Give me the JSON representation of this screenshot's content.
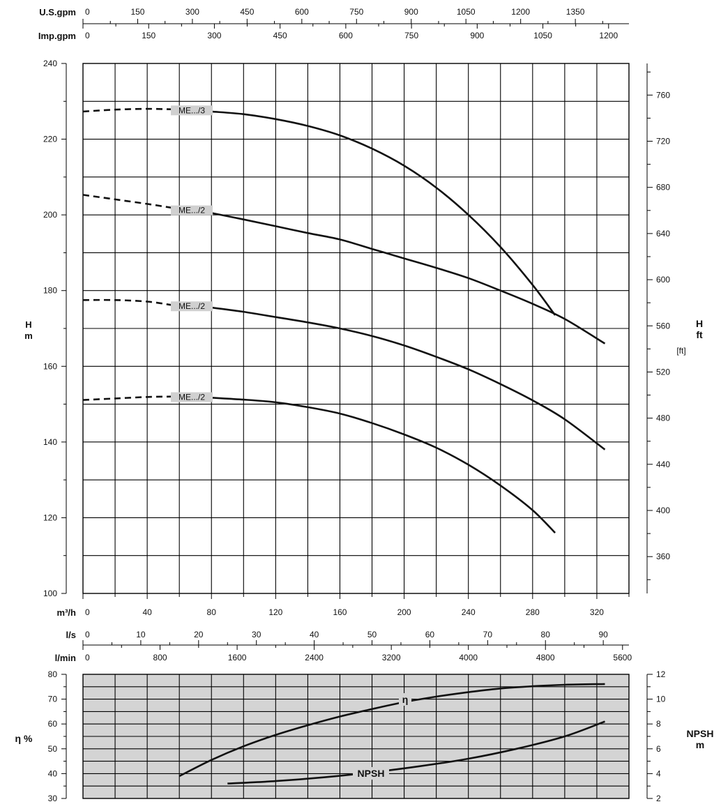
{
  "chart_data": [
    {
      "type": "line",
      "title": "",
      "xlabel": "m³/h",
      "ylabel": "H m",
      "ylabel_right": "H ft",
      "ylabel_right_unit": "[ft]",
      "xlim": [
        0,
        340
      ],
      "ylim": [
        100,
        240
      ],
      "x_ticks": [
        "0",
        "40",
        "80",
        "120",
        "160",
        "200",
        "240",
        "280",
        "320"
      ],
      "y_ticks": [
        "100",
        "120",
        "140",
        "160",
        "180",
        "200",
        "220",
        "240"
      ],
      "y_ticks_right": [
        "360",
        "400",
        "440",
        "480",
        "520",
        "560",
        "600",
        "640",
        "680",
        "720",
        "760"
      ],
      "grid": true,
      "secondary_x_axes": [
        {
          "label": "U.S.gpm",
          "ticks": [
            "0",
            "150",
            "300",
            "450",
            "600",
            "750",
            "900",
            "1050",
            "1200",
            "1350"
          ]
        },
        {
          "label": "Imp.gpm",
          "ticks": [
            "0",
            "150",
            "300",
            "450",
            "600",
            "750",
            "900",
            "1050",
            "1200"
          ]
        },
        {
          "label": "l/s",
          "ticks": [
            "0",
            "10",
            "20",
            "30",
            "40",
            "50",
            "60",
            "70",
            "80",
            "90"
          ]
        },
        {
          "label": "l/min",
          "ticks": [
            "0",
            "800",
            "1600",
            "2400",
            "3200",
            "4000",
            "4800",
            "5600"
          ]
        }
      ],
      "series": [
        {
          "name": "ME.../3",
          "dashed": {
            "x": [
              0,
              20,
              40,
              55
            ],
            "y": [
              227.3,
              227.8,
              228.0,
              227.9
            ]
          },
          "values": {
            "x": [
              80,
              100,
              120,
              140,
              160,
              180,
              200,
              220,
              240,
              260,
              280,
              294
            ],
            "y": [
              227.3,
              226.6,
              225.3,
              223.5,
              221.0,
              217.5,
              213.0,
              207.2,
              200.0,
              191.5,
              181.5,
              173.5
            ]
          }
        },
        {
          "name": "ME.../2",
          "dashed": {
            "x": [
              0,
              20,
              40,
              55
            ],
            "y": [
              205.3,
              204.1,
              202.9,
              201.9
            ]
          },
          "values": {
            "x": [
              80,
              100,
              120,
              140,
              160,
              180,
              200,
              220,
              240,
              260,
              280,
              300,
              325
            ],
            "y": [
              200.5,
              198.8,
              197.0,
              195.2,
              193.5,
              191.0,
              188.5,
              186.0,
              183.3,
              180.0,
              176.5,
              172.5,
              166.0
            ]
          }
        },
        {
          "name": "ME.../2",
          "dashed": {
            "x": [
              0,
              20,
              40,
              55
            ],
            "y": [
              177.5,
              177.5,
              177.1,
              176.2
            ]
          },
          "values": {
            "x": [
              80,
              100,
              120,
              140,
              160,
              180,
              200,
              220,
              240,
              260,
              280,
              300,
              325
            ],
            "y": [
              175.5,
              174.4,
              173.0,
              171.6,
              170.0,
              168.0,
              165.5,
              162.5,
              159.2,
              155.3,
              151.0,
              146.0,
              138.0
            ]
          }
        },
        {
          "name": "ME.../2",
          "dashed": {
            "x": [
              0,
              20,
              40,
              55
            ],
            "y": [
              151.1,
              151.5,
              151.9,
              152.0
            ]
          },
          "values": {
            "x": [
              80,
              100,
              120,
              140,
              160,
              180,
              200,
              220,
              240,
              260,
              280,
              294
            ],
            "y": [
              151.7,
              151.2,
              150.5,
              149.2,
              147.5,
              145.0,
              142.0,
              138.5,
              134.0,
              128.5,
              122.0,
              116.0
            ]
          }
        }
      ]
    },
    {
      "type": "line",
      "title": "",
      "ylabel": "η %",
      "ylabel_right": "NPSH m",
      "xlim": [
        0,
        340
      ],
      "ylim": [
        30,
        80
      ],
      "ylim_right": [
        2,
        12
      ],
      "y_ticks": [
        "30",
        "40",
        "50",
        "60",
        "70",
        "80"
      ],
      "y_ticks_right": [
        "2",
        "4",
        "6",
        "8",
        "10",
        "12"
      ],
      "grid": true,
      "background": "#d4d4d4",
      "series": [
        {
          "name": "η",
          "axis": "left",
          "x": [
            60,
            80,
            100,
            120,
            140,
            160,
            180,
            200,
            220,
            240,
            260,
            280,
            300,
            325
          ],
          "y": [
            39.0,
            45.5,
            51.0,
            55.6,
            59.5,
            63.0,
            66.0,
            68.8,
            71.0,
            72.8,
            74.3,
            75.2,
            75.8,
            76.1
          ]
        },
        {
          "name": "NPSH",
          "axis": "right",
          "x": [
            90,
            120,
            150,
            180,
            210,
            240,
            270,
            300,
            325
          ],
          "y": [
            3.2,
            3.4,
            3.7,
            4.1,
            4.6,
            5.2,
            6.0,
            7.0,
            8.2
          ]
        }
      ]
    }
  ],
  "colors": {
    "line": "#111111",
    "grid": "#000000",
    "lower_panel_bg": "#d4d4d4",
    "label_box": "#d0d0d0"
  }
}
